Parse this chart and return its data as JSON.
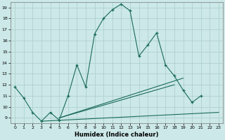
{
  "bg_color": "#cce8e8",
  "grid_color": "#aacccc",
  "line_color": "#1a6b5a",
  "xlabel": "Humidex (Indice chaleur)",
  "xlim": [
    -0.5,
    23.5
  ],
  "ylim": [
    8.5,
    19.5
  ],
  "xticks": [
    0,
    1,
    2,
    3,
    4,
    5,
    6,
    7,
    8,
    9,
    10,
    11,
    12,
    13,
    14,
    15,
    16,
    17,
    18,
    19,
    20,
    21,
    22,
    23
  ],
  "yticks": [
    9,
    10,
    11,
    12,
    13,
    14,
    15,
    16,
    17,
    18,
    19
  ],
  "main_line_x": [
    0,
    1,
    2,
    3,
    4,
    5,
    6,
    7,
    8,
    9,
    10,
    11,
    12,
    13,
    14,
    15,
    16,
    17,
    18,
    19,
    20,
    21
  ],
  "main_line_y": [
    11.8,
    10.8,
    9.5,
    8.7,
    9.5,
    8.8,
    11.0,
    13.8,
    11.8,
    16.6,
    18.0,
    18.8,
    19.3,
    18.7,
    14.6,
    15.6,
    16.7,
    13.8,
    12.8,
    11.5,
    10.4,
    11.0
  ],
  "fan_lines": [
    {
      "x": [
        3,
        23
      ],
      "y": [
        8.7,
        9.5
      ]
    },
    {
      "x": [
        5,
        19
      ],
      "y": [
        9.0,
        12.6
      ]
    },
    {
      "x": [
        5,
        18
      ],
      "y": [
        9.0,
        12.0
      ]
    }
  ]
}
